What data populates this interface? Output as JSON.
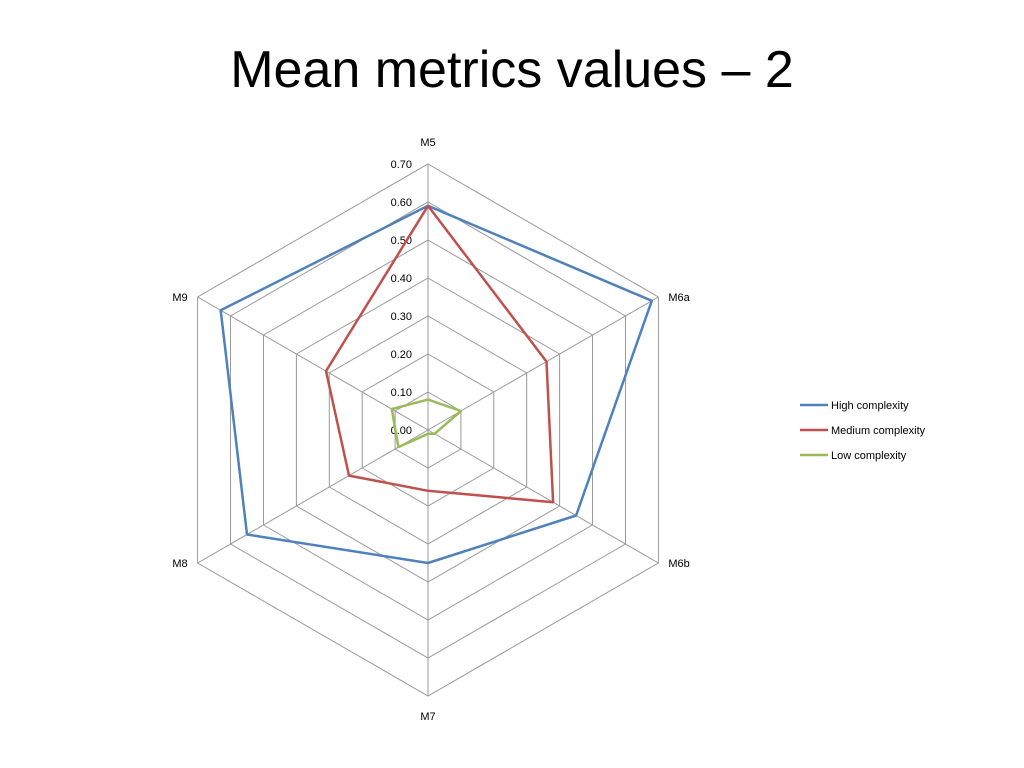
{
  "slide": {
    "title": "Mean metrics values – 2"
  },
  "chart_data": {
    "type": "radar",
    "title": "",
    "axes": [
      "M5",
      "M6a",
      "M6b",
      "M7",
      "M8",
      "M9"
    ],
    "ticks": [
      "0.00",
      "0.10",
      "0.20",
      "0.30",
      "0.40",
      "0.50",
      "0.60",
      "0.70"
    ],
    "rmin": 0,
    "rmax": 0.7,
    "grid": true,
    "legend_position": "right",
    "series": [
      {
        "name": "High complexity",
        "color": "#4F81BD",
        "values": [
          0.59,
          0.68,
          0.45,
          0.35,
          0.55,
          0.63
        ]
      },
      {
        "name": "Medium complexity",
        "color": "#C0504D",
        "values": [
          0.59,
          0.36,
          0.38,
          0.16,
          0.24,
          0.31
        ]
      },
      {
        "name": "Low complexity",
        "color": "#9BBB59",
        "values": [
          0.08,
          0.1,
          0.02,
          0.01,
          0.09,
          0.11
        ]
      }
    ]
  }
}
